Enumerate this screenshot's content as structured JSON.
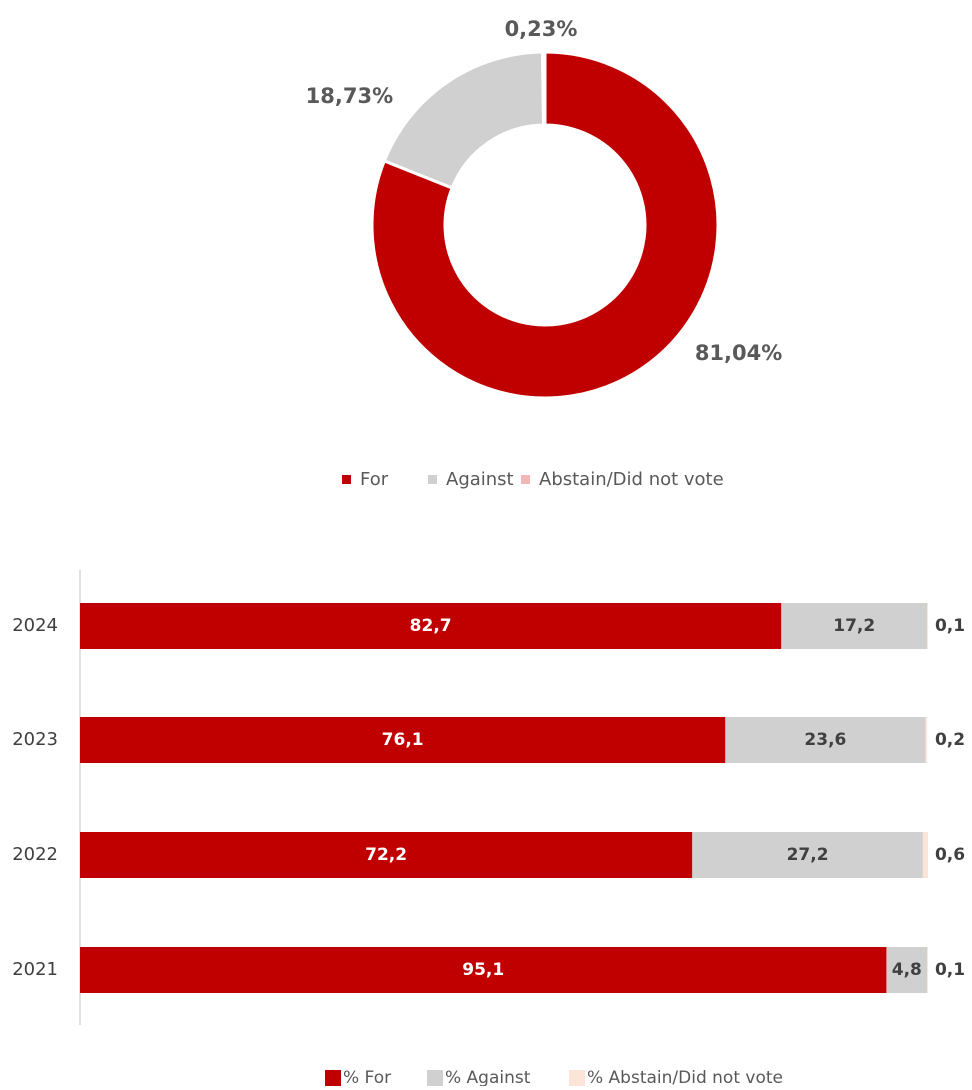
{
  "chart_data": [
    {
      "type": "donut",
      "categories": [
        "For",
        "Against",
        "Abstain/Did not vote"
      ],
      "values": [
        81.04,
        18.73,
        0.23
      ],
      "value_labels": [
        "81,04%",
        "18,73%",
        "0,23%"
      ],
      "colors": [
        "#c00000",
        "#d0d0d0",
        "#f2b8b8"
      ],
      "legend": "bottom"
    },
    {
      "type": "stacked-barh",
      "categories": [
        "2024",
        "2023",
        "2022",
        "2021"
      ],
      "series": [
        {
          "name": "% For",
          "color": "#c00000",
          "values": [
            82.7,
            76.1,
            72.2,
            95.1
          ],
          "value_labels": [
            "82,7",
            "76,1",
            "72,2",
            "95,1"
          ]
        },
        {
          "name": "% Against",
          "color": "#d0d0d0",
          "values": [
            17.2,
            23.6,
            27.2,
            4.8
          ],
          "value_labels": [
            "17,2",
            "23,6",
            "27,2",
            "4,8"
          ]
        },
        {
          "name": "% Abstain/Did not vote",
          "color": "#fce4d6",
          "values": [
            0.1,
            0.2,
            0.6,
            0.1
          ],
          "value_labels": [
            "0,1",
            "0,2",
            "0,6",
            "0,1"
          ]
        }
      ],
      "xlim": [
        0,
        100
      ],
      "legend": "bottom"
    }
  ]
}
